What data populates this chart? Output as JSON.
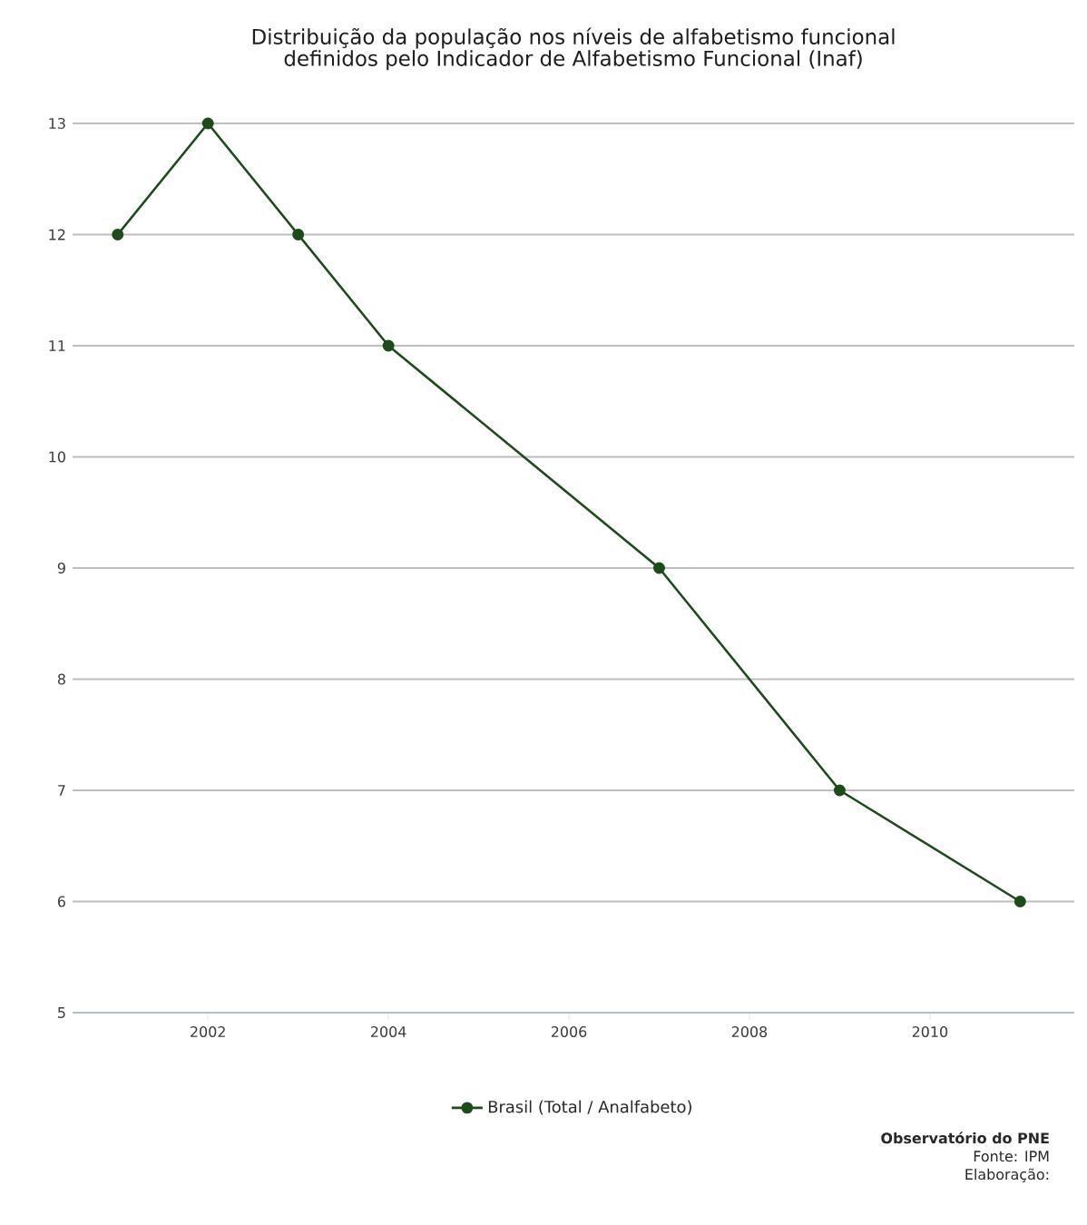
{
  "chart_data": {
    "type": "line",
    "title": "Distribuição da população nos níveis de alfabetismo funcional\ndefinidos pelo Indicador de Alfabetismo Funcional (Inaf)",
    "x": [
      2001,
      2002,
      2003,
      2004,
      2007,
      2009,
      2011
    ],
    "series": [
      {
        "name": "Brasil (Total / Analfabeto)",
        "color": "#1e4a1c",
        "values": [
          12,
          13,
          12,
          11,
          9,
          7,
          6
        ]
      }
    ],
    "xlim": [
      2000.5,
      2011.6
    ],
    "xticks": [
      2002,
      2004,
      2006,
      2008,
      2010
    ],
    "ylim": [
      5,
      13
    ],
    "yticks": [
      5,
      6,
      7,
      8,
      9,
      10,
      11,
      12,
      13
    ],
    "grid": "y",
    "legend": "bottom",
    "marker": "circle",
    "line_style": "solid",
    "annotations": [
      "**Observatório do PNE**",
      "Fonte: IPM",
      "Elaboração:"
    ]
  }
}
